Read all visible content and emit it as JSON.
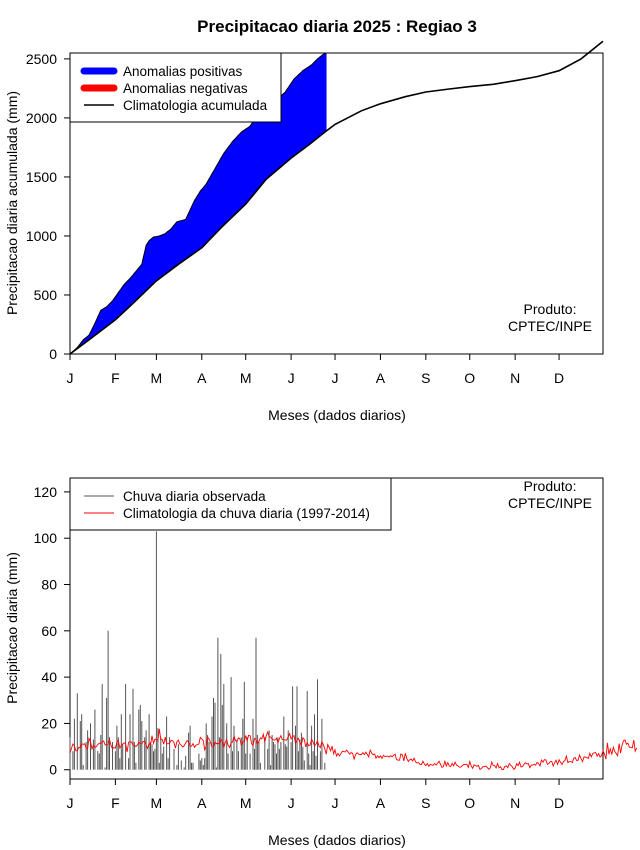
{
  "title": "Precipitacao diaria 2025 : Regiao 3",
  "credit": [
    "Produto:",
    "CPTEC/INPE"
  ],
  "colors": {
    "positive": "#0000ff",
    "negative": "#ff0000",
    "climatology": "#000000",
    "observed_bar": "#555555",
    "daily_climatology": "#ff0000"
  },
  "chart_data": [
    {
      "type": "area",
      "name": "accumulated",
      "xlabel": "Meses (dados diarios)",
      "ylabel": "Precipitacao diaria acumulada (mm)",
      "x_month_labels": [
        "J",
        "F",
        "M",
        "A",
        "M",
        "J",
        "J",
        "A",
        "S",
        "O",
        "N",
        "D"
      ],
      "x_month_start_days": [
        1,
        32,
        60,
        91,
        121,
        152,
        182,
        213,
        244,
        274,
        305,
        335
      ],
      "xlim": [
        1,
        365
      ],
      "ylim": [
        0,
        2550
      ],
      "yticks": [
        0,
        500,
        1000,
        1500,
        2000,
        2500
      ],
      "legend": [
        "Anomalias positivas",
        "Anomalias negativas",
        "Climatologia acumulada"
      ],
      "legend_position": "top-left",
      "climatology_accumulated": {
        "x": [
          1,
          15,
          32,
          45,
          60,
          75,
          91,
          105,
          121,
          135,
          152,
          165,
          175,
          182,
          200,
          213,
          230,
          244,
          260,
          274,
          290,
          305,
          320,
          335,
          350,
          365
        ],
        "y": [
          0,
          130,
          290,
          440,
          620,
          760,
          900,
          1080,
          1270,
          1480,
          1660,
          1780,
          1880,
          1945,
          2060,
          2120,
          2180,
          2220,
          2245,
          2265,
          2285,
          2315,
          2350,
          2400,
          2500,
          2650
        ]
      },
      "observed_accumulated": {
        "x": [
          1,
          6,
          10,
          14,
          18,
          22,
          26,
          30,
          34,
          38,
          42,
          46,
          50,
          53,
          55,
          58,
          62,
          66,
          70,
          74,
          80,
          86,
          90,
          94,
          100,
          106,
          112,
          118,
          124,
          130,
          136,
          142,
          148,
          154,
          160,
          166,
          170,
          174,
          176
        ],
        "y": [
          0,
          55,
          120,
          160,
          260,
          370,
          400,
          450,
          520,
          590,
          640,
          700,
          760,
          920,
          960,
          990,
          1000,
          1020,
          1060,
          1120,
          1140,
          1300,
          1380,
          1440,
          1570,
          1700,
          1800,
          1880,
          1930,
          2050,
          2090,
          2150,
          2220,
          2330,
          2400,
          2450,
          2500,
          2540,
          2545
        ]
      },
      "observed_end_day": 176
    },
    {
      "type": "bar",
      "name": "daily",
      "xlabel": "Meses (dados diarios)",
      "ylabel": "Precipitacao diaria (mm)",
      "x_month_labels": [
        "J",
        "F",
        "M",
        "A",
        "M",
        "J",
        "J",
        "A",
        "S",
        "O",
        "N",
        "D"
      ],
      "x_month_start_days": [
        1,
        32,
        60,
        91,
        121,
        152,
        182,
        213,
        244,
        274,
        305,
        335
      ],
      "xlim": [
        1,
        365
      ],
      "ylim": [
        -4,
        126
      ],
      "yticks": [
        0,
        20,
        40,
        60,
        80,
        100,
        120
      ],
      "legend": [
        "Chuva diaria observada",
        "Climatologia da chuva diaria (1997-2014)"
      ],
      "legend_position": "top-left",
      "observed_daily": {
        "start_day": 1,
        "values": [
          14,
          0,
          8,
          22,
          0,
          33,
          0,
          21,
          24,
          2,
          0,
          12,
          17,
          0,
          20,
          0,
          13,
          26,
          0,
          8,
          7,
          15,
          37,
          0,
          1,
          31,
          60,
          14,
          0,
          12,
          0,
          8,
          19,
          14,
          5,
          24,
          11,
          0,
          37,
          0,
          5,
          24,
          0,
          35,
          12,
          3,
          0,
          26,
          28,
          21,
          0,
          14,
          17,
          0,
          24,
          12,
          11,
          8,
          9,
          103,
          18,
          3,
          14,
          7,
          10,
          0,
          23,
          5,
          14,
          0,
          0,
          9,
          0,
          2,
          11,
          0,
          4,
          0,
          1,
          6,
          0,
          16,
          19,
          3,
          3,
          0,
          0,
          0,
          7,
          4,
          5,
          2,
          5,
          20,
          15,
          12,
          0,
          23,
          31,
          29,
          1,
          57,
          14,
          50,
          28,
          37,
          0,
          20,
          7,
          0,
          40,
          8,
          19,
          0,
          13,
          8,
          0,
          14,
          22,
          38,
          7,
          14,
          0,
          7,
          0,
          22,
          9,
          57,
          15,
          12,
          3,
          0,
          0,
          14,
          0,
          9,
          17,
          2,
          15,
          12,
          11,
          7,
          14,
          9,
          12,
          0,
          23,
          11,
          10,
          17,
          0,
          12,
          36,
          0,
          19,
          36,
          8,
          13,
          16,
          10,
          4,
          0,
          34,
          7,
          2,
          19,
          8,
          24,
          6,
          39,
          0,
          8,
          22,
          0,
          3,
          0
        ]
      },
      "climatology_daily": {
        "start_day": 1,
        "values": [
          7.2,
          9.3,
          11.1,
          10.3,
          8.2,
          8.2,
          9.7,
          9.5,
          11.2,
          11.0,
          11.2,
          9.4,
          9.1,
          13.5,
          12.1,
          9.0,
          10.6,
          9.6,
          10.0,
          10.9,
          11.5,
          11.3,
          12.1,
          12.4,
          10.7,
          10.8,
          11.1,
          13.0,
          10.6,
          9.1,
          9.6,
          9.3,
          12.0,
          12.7,
          9.4,
          10.4,
          11.1,
          11.6,
          11.4,
          7.6,
          11.9,
          12.1,
          12.0,
          10.6,
          10.5,
          10.1,
          10.6,
          12.0,
          11.3,
          11.2,
          12.2,
          12.3,
          10.6,
          9.2,
          11.5,
          10.7,
          14.7,
          11.4,
          13.2,
          13.1,
          12.6,
          17.7,
          13.0,
          13.0,
          11.0,
          14.1,
          11.3,
          11.2,
          11.4,
          12.6,
          12.6,
          11.7,
          9.3,
          12.1,
          12.8,
          11.1,
          10.6,
          9.8,
          10.4,
          11.6,
          12.6,
          12.0,
          10.1,
          10.2,
          11.3,
          9.7,
          10.6,
          10.9,
          11.1,
          14.0,
          13.3,
          12.5,
          8.6,
          10.2,
          14.1,
          13.2,
          11.8,
          9.8,
          10.1,
          12.1,
          11.2,
          11.4,
          11.2,
          13.2,
          12.3,
          9.5,
          11.8,
          13.0,
          10.6,
          9.6,
          11.7,
          11.9,
          14.6,
          12.6,
          12.1,
          13.8,
          13.3,
          10.6,
          12.1,
          12.1,
          14.8,
          12.5,
          14.9,
          14.7,
          11.3,
          10.4,
          13.5,
          13.1,
          11.2,
          12.2,
          13.8,
          13.3,
          15.3,
          12.0,
          14.6,
          16.3,
          14.4,
          14.1,
          13.3,
          12.8,
          12.8,
          13.6,
          11.7,
          13.4,
          14.7,
          13.0,
          12.9,
          12.9,
          12.8,
          14.2,
          15.6,
          13.3,
          14.4,
          14.7,
          11.5,
          12.8,
          13.6,
          11.7,
          10.7,
          13.8,
          13.1,
          9.8,
          11.8,
          10.4,
          10.6,
          13.2,
          12.0,
          10.3,
          11.1,
          12.6,
          10.2,
          9.6,
          12.2,
          10.8,
          9.0,
          6.7,
          10.9,
          9.6,
          8.2,
          10.2,
          6.9,
          8.6,
          5.9,
          7.0,
          6.0,
          6.9,
          8.0,
          7.8,
          7.7,
          8.5,
          7.6,
          6.7,
          7.4,
          7.1,
          4.6,
          6.5,
          7.3,
          6.8,
          6.6,
          6.6,
          7.4,
          6.5,
          7.6,
          6.6,
          5.5,
          8.5,
          7.2,
          6.5,
          6.8,
          5.0,
          6.0,
          5.2,
          6.0,
          4.9,
          6.2,
          5.7,
          5.8,
          5.9,
          5.4,
          6.1,
          5.6,
          6.2,
          6.7,
          4.4,
          4.1,
          4.1,
          6.8,
          6.4,
          3.8,
          7.1,
          4.9,
          3.6,
          4.3,
          4.6,
          3.8,
          5.0,
          3.4,
          2.9,
          3.1,
          2.3,
          2.2,
          3.7,
          2.5,
          1.8,
          2.7,
          1.5,
          2.3,
          2.1,
          1.9,
          2.7,
          2.0,
          2.8,
          3.7,
          2.4,
          1.0,
          1.4,
          3.7,
          1.6,
          3.1,
          1.6,
          1.4,
          2.8,
          1.7,
          3.3,
          1.9,
          1.6,
          1.1,
          1.2,
          1.8,
          2.3,
          2.3,
          2.4,
          1.0,
          3.6,
          1.6,
          0.6,
          2.1,
          1.8,
          1.5,
          1.9,
          0.1,
          0.6,
          1.3,
          1.3,
          1.6,
          1.0,
          0.2,
          0.8,
          3.3,
          1.9,
          1.8,
          0.8,
          2.7,
          0.9,
          1.3,
          0.1,
          0.1,
          1.5,
          1.6,
          0.9,
          2.7,
          1.9,
          1.4,
          0.2,
          0.6,
          2.6,
          1.8,
          3.3,
          1.2,
          1.3,
          2.3,
          3.1,
          2.5,
          2.7,
          0.9,
          2.0,
          2.0,
          2.3,
          2.0,
          3.2,
          2.6,
          1.7,
          4.2,
          3.3,
          4.4,
          4.2,
          2.3,
          2.6,
          3.5,
          3.5,
          1.6,
          3.1,
          4.1,
          2.3,
          4.3,
          3.2,
          2.2,
          3.6,
          3.9,
          5.9,
          3.1,
          3.5,
          3.5,
          3.1,
          5.0,
          5.3,
          4.0,
          4.1,
          6.4,
          4.8,
          3.5,
          5.5,
          5.5,
          5.2,
          4.9,
          7.1,
          5.6,
          7.0,
          7.3,
          7.4,
          5.9,
          7.0,
          5.5,
          6.1,
          8.2,
          6.8,
          4.6,
          11.6,
          6.7,
          9.0,
          6.6,
          9.7,
          8.0,
          7.0,
          6.0,
          11.3,
          7.2,
          10.5,
          12.5,
          12.9,
          11.0,
          11.5,
          9.7,
          9.5,
          9.5,
          12.8,
          8.0,
          9.4
        ]
      }
    }
  ]
}
